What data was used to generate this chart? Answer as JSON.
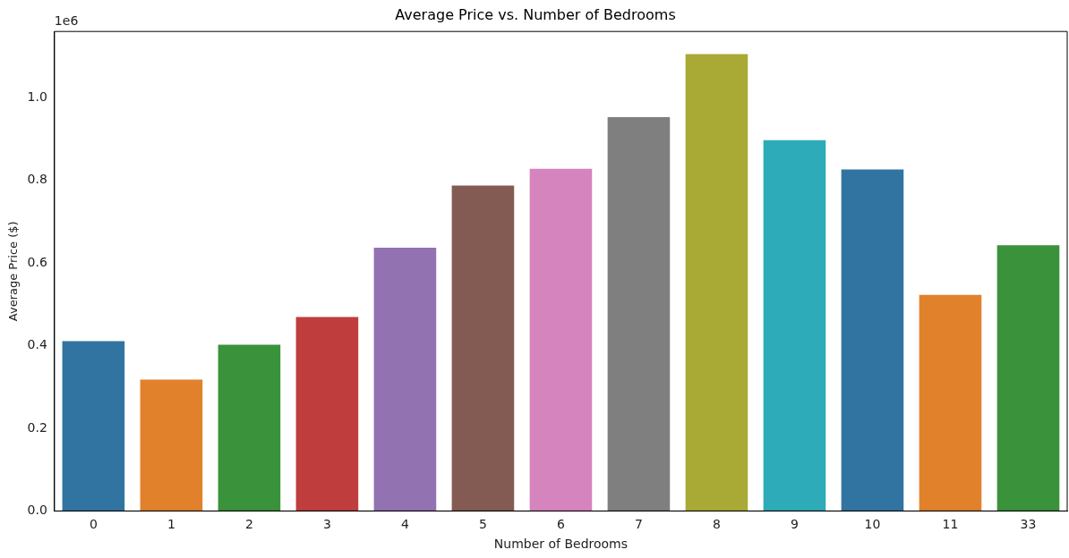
{
  "chart_data": {
    "type": "bar",
    "title": "Average Price vs. Number of Bedrooms",
    "xlabel": "Number of Bedrooms",
    "ylabel": "Average Price ($)",
    "annotations": [
      "1e6"
    ],
    "categories": [
      "0",
      "1",
      "2",
      "3",
      "4",
      "5",
      "6",
      "7",
      "8",
      "9",
      "10",
      "11",
      "33"
    ],
    "values": [
      0.411,
      0.318,
      0.402,
      0.469,
      0.637,
      0.787,
      0.828,
      0.953,
      1.105,
      0.897,
      0.826,
      0.523,
      0.643
    ],
    "colors": [
      "#3274a1",
      "#e1812c",
      "#3a923a",
      "#c03d3e",
      "#9372b2",
      "#845b53",
      "#d684bd",
      "#7f7f7f",
      "#a9aa35",
      "#2eabb8",
      "#3274a1",
      "#e1812c",
      "#3a923a"
    ],
    "ylim": [
      0,
      1.16
    ],
    "yticks": [
      {
        "value": 0,
        "label": "0.0"
      },
      {
        "value": 0.2,
        "label": "0.2"
      },
      {
        "value": 0.4,
        "label": "0.4"
      },
      {
        "value": 0.6,
        "label": "0.6"
      },
      {
        "value": 0.8,
        "label": "0.8"
      },
      {
        "value": 1,
        "label": "1.0"
      }
    ],
    "grid": false,
    "legend": false
  }
}
